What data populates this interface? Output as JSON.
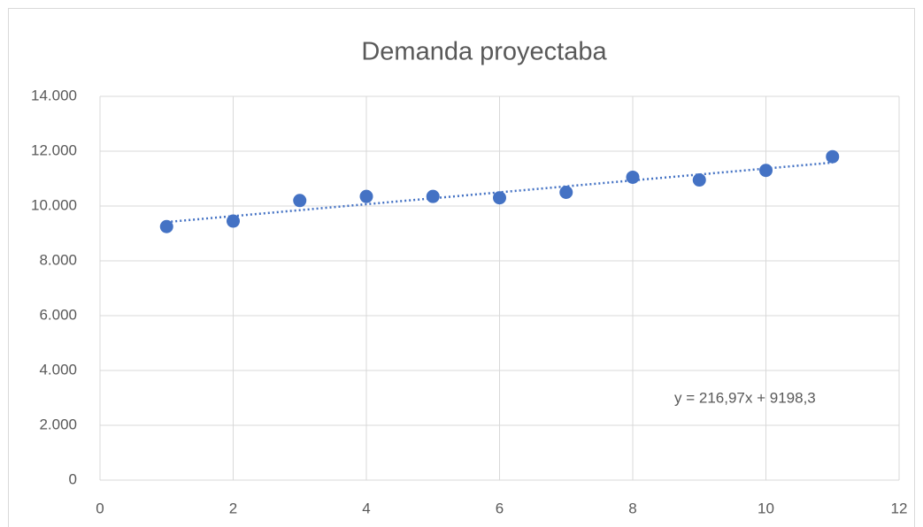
{
  "chart_data": {
    "type": "scatter",
    "title": "Demanda proyectaba",
    "x": [
      1,
      2,
      3,
      4,
      5,
      6,
      7,
      8,
      9,
      10,
      11
    ],
    "series": [
      {
        "name": "Demanda",
        "color": "#4472c4",
        "values": [
          9250,
          9450,
          10200,
          10350,
          10350,
          10300,
          10500,
          11050,
          10950,
          11300,
          11800
        ]
      }
    ],
    "trendline": {
      "label": "y = 216,97x + 9198,3",
      "slope": 216.97,
      "intercept": 9198.3
    },
    "xlim": [
      0,
      12
    ],
    "xticks": [
      0,
      2,
      4,
      6,
      8,
      10,
      12
    ],
    "ylim": [
      0,
      14000
    ],
    "yticks": [
      {
        "value": 0,
        "label": "0"
      },
      {
        "value": 2000,
        "label": "2.000"
      },
      {
        "value": 4000,
        "label": "4.000"
      },
      {
        "value": 6000,
        "label": "6.000"
      },
      {
        "value": 8000,
        "label": "8.000"
      },
      {
        "value": 10000,
        "label": "10.000"
      },
      {
        "value": 12000,
        "label": "12.000"
      },
      {
        "value": 14000,
        "label": "14.000"
      }
    ],
    "grid": true
  }
}
